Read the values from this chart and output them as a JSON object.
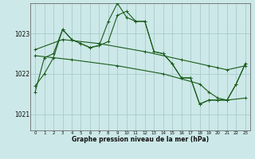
{
  "xlabel": "Graphe pression niveau de la mer (hPa)",
  "background_color": "#cce8e8",
  "grid_color": "#aacccc",
  "line_color": "#1a5c1a",
  "x_ticks": [
    0,
    1,
    2,
    3,
    4,
    5,
    6,
    7,
    8,
    9,
    10,
    11,
    12,
    13,
    14,
    15,
    16,
    17,
    18,
    19,
    20,
    21,
    22,
    23
  ],
  "y_ticks": [
    1021,
    1022,
    1023
  ],
  "ylim": [
    1020.6,
    1023.75
  ],
  "xlim": [
    -0.5,
    23.5
  ],
  "line1_x": [
    0,
    1,
    2,
    3,
    4,
    5,
    6,
    7,
    8,
    9,
    10,
    11,
    12,
    13,
    14,
    15,
    16,
    17,
    18,
    19,
    20,
    21,
    22,
    23
  ],
  "line1_y": [
    1021.7,
    1022.0,
    1022.4,
    1023.1,
    1022.85,
    1022.75,
    1022.65,
    1022.7,
    1023.3,
    1023.75,
    1023.4,
    1023.3,
    1023.3,
    1022.55,
    1022.5,
    1022.25,
    1021.9,
    1021.9,
    1021.25,
    1021.35,
    1021.35,
    1021.35,
    1021.75,
    1022.25
  ],
  "line2_x": [
    0,
    1,
    2,
    3,
    4,
    5,
    6,
    7,
    8,
    9,
    10,
    11,
    12,
    13,
    14,
    15,
    16,
    17,
    18,
    19,
    20,
    21,
    22,
    23
  ],
  "line2_y": [
    1021.55,
    1022.4,
    1022.5,
    1023.1,
    1022.85,
    1022.75,
    1022.65,
    1022.7,
    1022.8,
    1023.45,
    1023.55,
    1023.3,
    1023.3,
    1022.55,
    1022.5,
    1022.25,
    1021.9,
    1021.9,
    1021.25,
    1021.35,
    1021.35,
    1021.35,
    1021.75,
    1022.25
  ],
  "line3_x": [
    0,
    3,
    7,
    12,
    16,
    19,
    20,
    21,
    23
  ],
  "line3_y": [
    1022.6,
    1022.85,
    1022.75,
    1022.55,
    1022.35,
    1022.2,
    1022.15,
    1022.1,
    1022.2
  ],
  "line4_x": [
    0,
    4,
    9,
    14,
    18,
    19,
    20,
    21,
    23
  ],
  "line4_y": [
    1022.45,
    1022.35,
    1022.2,
    1022.0,
    1021.75,
    1021.55,
    1021.4,
    1021.35,
    1021.4
  ]
}
